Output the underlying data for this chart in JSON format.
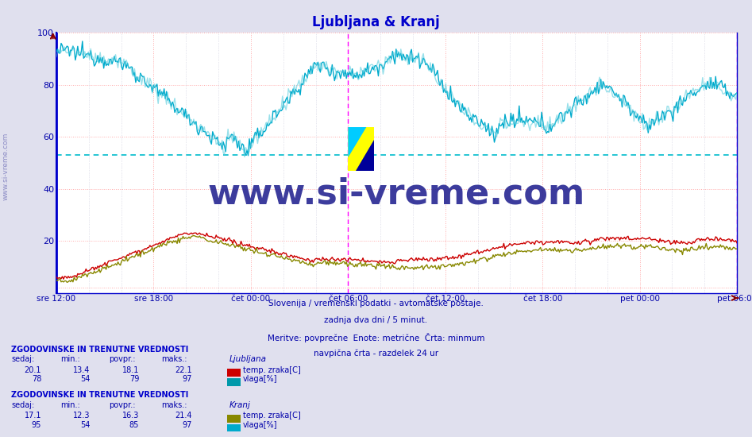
{
  "title": "Ljubljana & Kranj",
  "bg_color": "#e0e0ee",
  "plot_bg_color": "#ffffff",
  "axis_color": "#0000cc",
  "text_color": "#0000aa",
  "subtitle_lines": [
    "Slovenija / vremenski podatki - avtomatske postaje.",
    "zadnja dva dni / 5 minut.",
    "Meritve: povprečne  Enote: metrične  Črta: minmum",
    "navpična črta - razdelek 24 ur"
  ],
  "xlabel_ticks": [
    "sre 12:00",
    "sre 18:00",
    "čet 00:00",
    "čet 06:00",
    "čet 12:00",
    "čet 18:00",
    "pet 00:00",
    "pet 06:00"
  ],
  "ylim": [
    0,
    100
  ],
  "yticks": [
    20,
    40,
    60,
    80,
    100
  ],
  "grid_color_main": "#ffaaaa",
  "grid_color_sub": "#ddddee",
  "hline_color": "#00bbcc",
  "hline_y": 53,
  "vline_color_dashed": "#ff00ff",
  "watermark_text": "www.si-vreme.com",
  "watermark_color": "#1a1a8c",
  "legend_box_colors": {
    "lj_temp": "#cc0000",
    "lj_vlaga": "#0099aa",
    "kranj_temp": "#888800",
    "kranj_vlaga": "#00aacc"
  },
  "legend_texts": {
    "ljubljana": "Ljubljana",
    "lj_temp": "temp. zraka[C]",
    "lj_vlaga": "vlaga[%]",
    "kranj": "Kranj",
    "kranj_temp": "temp. zraka[C]",
    "kranj_vlaga": "vlaga[%]"
  },
  "stats_header": "ZGODOVINSKE IN TRENUTNE VREDNOSTI",
  "stats_cols": [
    "sedaj:",
    "min.:",
    "povpr.:",
    "maks.:"
  ],
  "lj_stats": {
    "temp": [
      20.1,
      13.4,
      18.1,
      22.1
    ],
    "vlaga": [
      78,
      54,
      79,
      97
    ]
  },
  "kranj_stats": {
    "temp": [
      17.1,
      12.3,
      16.3,
      21.4
    ],
    "vlaga": [
      95,
      54,
      85,
      97
    ]
  },
  "n_points": 576,
  "lj_temp_color": "#cc0000",
  "lj_vlaga_color": "#00aacc",
  "kranj_temp_color": "#888800",
  "kranj_vlaga_color": "#00aacc",
  "dashed_hline_color": "#00bbcc",
  "dashed_hline_y": 53,
  "logo_colors": {
    "yellow": "#ffff00",
    "cyan": "#00ccff",
    "dark_blue": "#000099"
  }
}
